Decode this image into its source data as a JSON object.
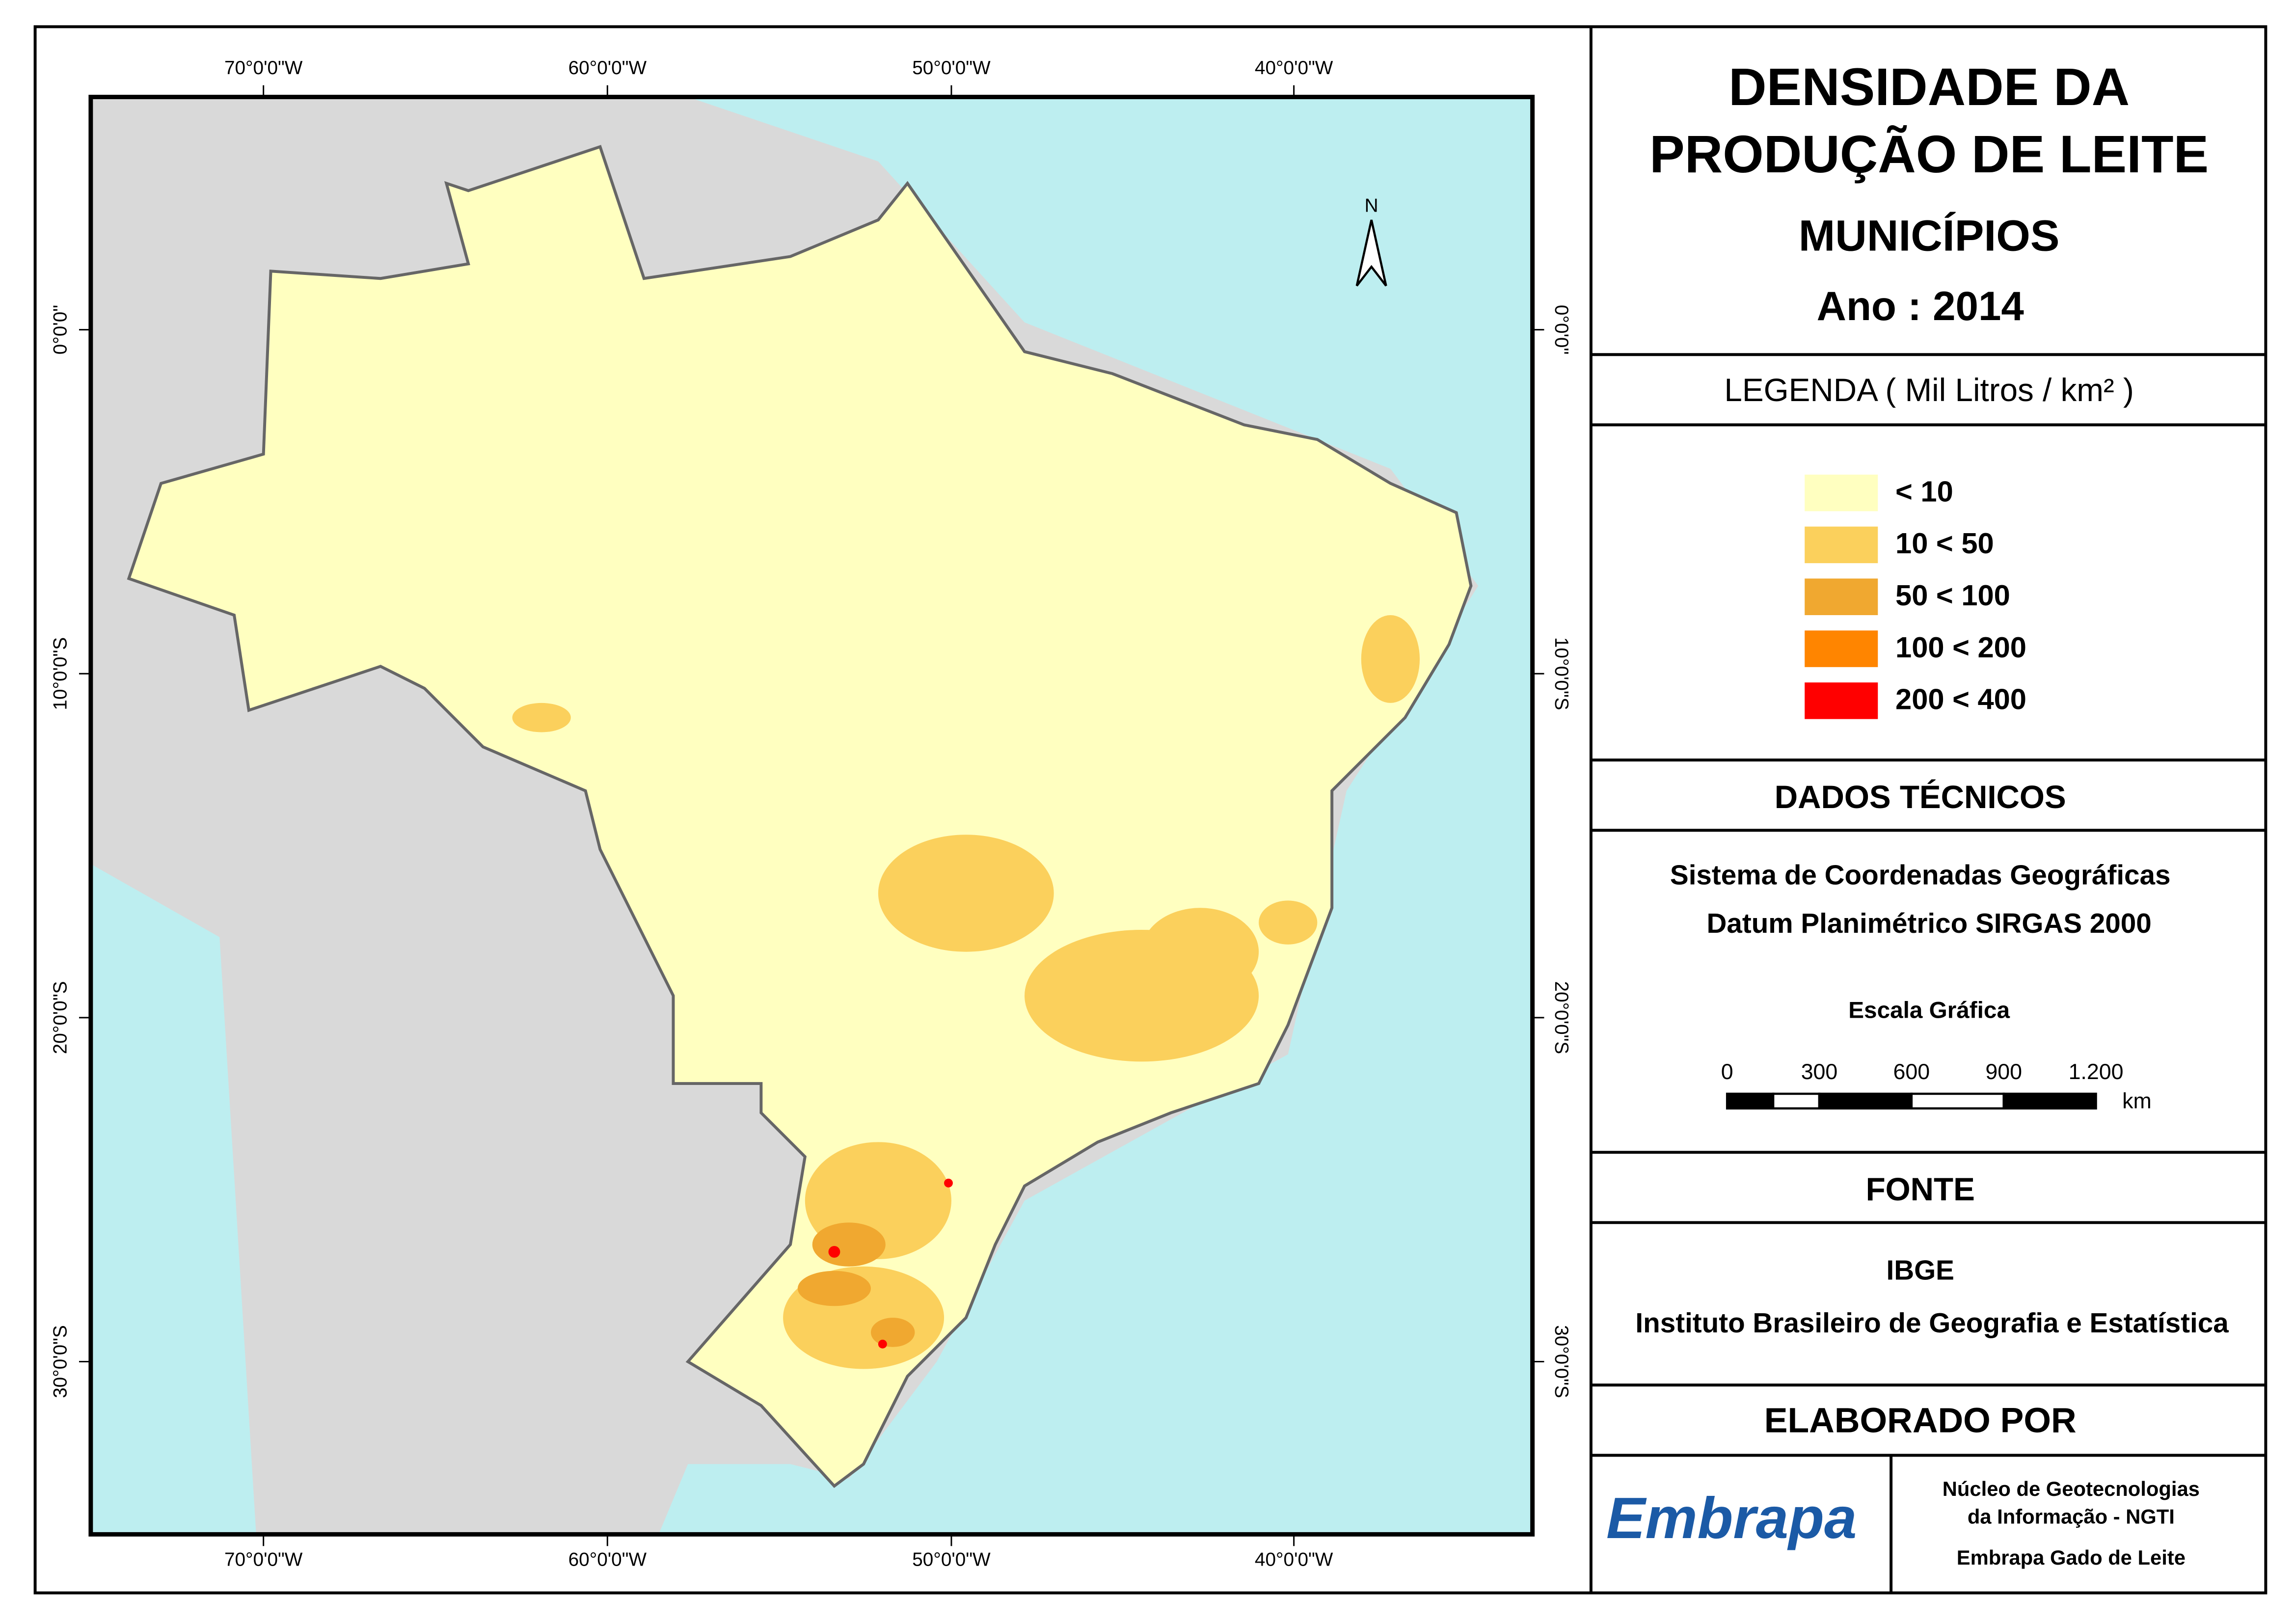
{
  "title": {
    "line1": "DENSIDADE DA",
    "line2": "PRODUÇÃO DE LEITE",
    "line3": "MUNICÍPIOS",
    "year": "Ano : 2014"
  },
  "legend": {
    "heading": "LEGENDA ( Mil Litros / km² )",
    "items": [
      {
        "label": "< 10",
        "color": "#ffffc0"
      },
      {
        "label": "10 < 50",
        "color": "#fbd05c"
      },
      {
        "label": "50 < 100",
        "color": "#f0a830"
      },
      {
        "label": "100 < 200",
        "color": "#ff8500"
      },
      {
        "label": "200 < 400",
        "color": "#ff0000"
      }
    ]
  },
  "technical": {
    "heading": "DADOS TÉCNICOS",
    "line1": "Sistema de Coordenadas Geográficas",
    "line2": "Datum Planimétrico SIRGAS 2000",
    "scale_title": "Escala Gráfica",
    "scale_labels": [
      "0",
      "300",
      "600",
      "900",
      "1.200"
    ],
    "scale_unit": "km"
  },
  "source": {
    "heading": "FONTE",
    "line1": "IBGE",
    "line2": "Instituto Brasileiro de Geografia e Estatística"
  },
  "made_by": {
    "heading": "ELABORADO POR",
    "logo": "Embrapa",
    "line1": "Núcleo de Geotecnologias",
    "line2": "da Informação - NGTI",
    "line3": "Embrapa Gado de Leite"
  },
  "map": {
    "north": "N",
    "coords_top": [
      "70°0'0\"W",
      "60°0'0\"W",
      "50°0'0\"W",
      "40°0'0\"W"
    ],
    "coords_bottom": [
      "70°0'0\"W",
      "60°0'0\"W",
      "50°0'0\"W",
      "40°0'0\"W"
    ],
    "coords_left": [
      "0°0'0\"",
      "10°0'0\"S",
      "20°0'0\"S",
      "30°0'0\"S"
    ],
    "coords_right": [
      "0°0'0\"",
      "10°0'0\"S",
      "20°0'0\"S",
      "30°0'0\"S"
    ]
  }
}
